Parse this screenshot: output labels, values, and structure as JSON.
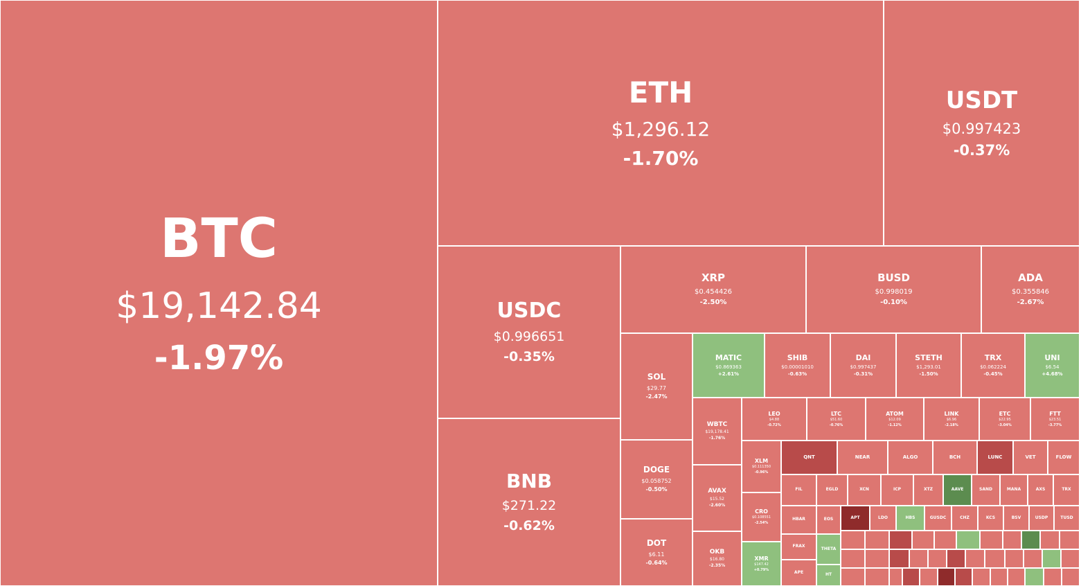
{
  "colors": {
    "down": "#dd7671",
    "down_strong": "#b84b4a",
    "down_stronger": "#8f2b2b",
    "up": "#8fc07e",
    "up_strong": "#5c8c4f",
    "text": "#ffffff",
    "border": "#ffffff"
  },
  "tiles": [
    {
      "symbol": "BTC",
      "price": "$19,142.84",
      "change": "-1.97%"
    },
    {
      "symbol": "ETH",
      "price": "$1,296.12",
      "change": "-1.70%"
    },
    {
      "symbol": "USDT",
      "price": "$0.997423",
      "change": "-0.37%"
    },
    {
      "symbol": "USDC",
      "price": "$0.996651",
      "change": "-0.35%"
    },
    {
      "symbol": "BNB",
      "price": "$271.22",
      "change": "-0.62%"
    },
    {
      "symbol": "XRP",
      "price": "$0.454426",
      "change": "-2.50%"
    },
    {
      "symbol": "BUSD",
      "price": "$0.998019",
      "change": "-0.10%"
    },
    {
      "symbol": "ADA",
      "price": "$0.355846",
      "change": "-2.67%"
    },
    {
      "symbol": "SOL",
      "price": "$29.77",
      "change": "-2.47%"
    },
    {
      "symbol": "DOGE",
      "price": "$0.058752",
      "change": "-0.50%"
    },
    {
      "symbol": "DOT",
      "price": "$6.11",
      "change": "-0.64%"
    },
    {
      "symbol": "MATIC",
      "price": "$0.869363",
      "change": "+2.61%"
    },
    {
      "symbol": "SHIB",
      "price": "$0.00001010",
      "change": "-0.63%"
    },
    {
      "symbol": "DAI",
      "price": "$0.997437",
      "change": "-0.31%"
    },
    {
      "symbol": "STETH",
      "price": "$1,293.01",
      "change": "-1.50%"
    },
    {
      "symbol": "TRX",
      "price": "$0.062224",
      "change": "-0.45%"
    },
    {
      "symbol": "UNI",
      "price": "$6.54",
      "change": "+4.68%"
    },
    {
      "symbol": "WBTC",
      "price": "$19,178.41",
      "change": "-1.76%"
    },
    {
      "symbol": "AVAX",
      "price": "$15.52",
      "change": "-2.60%"
    },
    {
      "symbol": "OKB",
      "price": "$16.80",
      "change": "-2.35%"
    },
    {
      "symbol": "LEO",
      "price": "$4.88",
      "change": "-0.72%"
    },
    {
      "symbol": "LTC",
      "price": "$51.60",
      "change": "-0.76%"
    },
    {
      "symbol": "ATOM",
      "price": "$12.09",
      "change": "-1.12%"
    },
    {
      "symbol": "LINK",
      "price": "$6.96",
      "change": "-2.18%"
    },
    {
      "symbol": "ETC",
      "price": "$22.95",
      "change": "-3.04%"
    },
    {
      "symbol": "FTT",
      "price": "$23.51",
      "change": "-3.77%"
    },
    {
      "symbol": "XLM",
      "price": "$0.111350",
      "change": "-0.96%"
    },
    {
      "symbol": "CRO",
      "price": "$0.108551",
      "change": "-2.54%"
    },
    {
      "symbol": "XMR",
      "price": "$147.42",
      "change": "+0.79%"
    },
    {
      "symbol": "QNT",
      "price": "",
      "change": ""
    },
    {
      "symbol": "NEAR",
      "price": "",
      "change": ""
    },
    {
      "symbol": "ALGO",
      "price": "",
      "change": ""
    },
    {
      "symbol": "BCH",
      "price": "",
      "change": ""
    },
    {
      "symbol": "LUNC",
      "price": "",
      "change": ""
    },
    {
      "symbol": "VET",
      "price": "",
      "change": ""
    },
    {
      "symbol": "FLOW",
      "price": "",
      "change": ""
    },
    {
      "symbol": "FIL",
      "price": "",
      "change": ""
    },
    {
      "symbol": "EGLD",
      "price": "",
      "change": ""
    },
    {
      "symbol": "XCN",
      "price": "",
      "change": ""
    },
    {
      "symbol": "ICP",
      "price": "",
      "change": ""
    },
    {
      "symbol": "XTZ",
      "price": "",
      "change": ""
    },
    {
      "symbol": "AAVE",
      "price": "",
      "change": ""
    },
    {
      "symbol": "SAND",
      "price": "",
      "change": ""
    },
    {
      "symbol": "MANA",
      "price": "",
      "change": ""
    },
    {
      "symbol": "AXS",
      "price": "",
      "change": ""
    },
    {
      "symbol": "TRX",
      "price": "",
      "change": ""
    },
    {
      "symbol": "HBAR",
      "price": "",
      "change": ""
    },
    {
      "symbol": "EOS",
      "price": "",
      "change": ""
    },
    {
      "symbol": "APT",
      "price": "",
      "change": ""
    },
    {
      "symbol": "LDO",
      "price": "",
      "change": ""
    },
    {
      "symbol": "HBS",
      "price": "",
      "change": ""
    },
    {
      "symbol": "GUSDC",
      "price": "",
      "change": ""
    },
    {
      "symbol": "CHZ",
      "price": "",
      "change": ""
    },
    {
      "symbol": "KCS",
      "price": "",
      "change": ""
    },
    {
      "symbol": "BSV",
      "price": "",
      "change": ""
    },
    {
      "symbol": "USDP",
      "price": "",
      "change": ""
    },
    {
      "symbol": "TUSD",
      "price": "",
      "change": ""
    },
    {
      "symbol": "FRAX",
      "price": "",
      "change": ""
    },
    {
      "symbol": "THETA",
      "price": "",
      "change": ""
    },
    {
      "symbol": "APE",
      "price": "",
      "change": ""
    },
    {
      "symbol": "HT",
      "price": "",
      "change": ""
    }
  ]
}
